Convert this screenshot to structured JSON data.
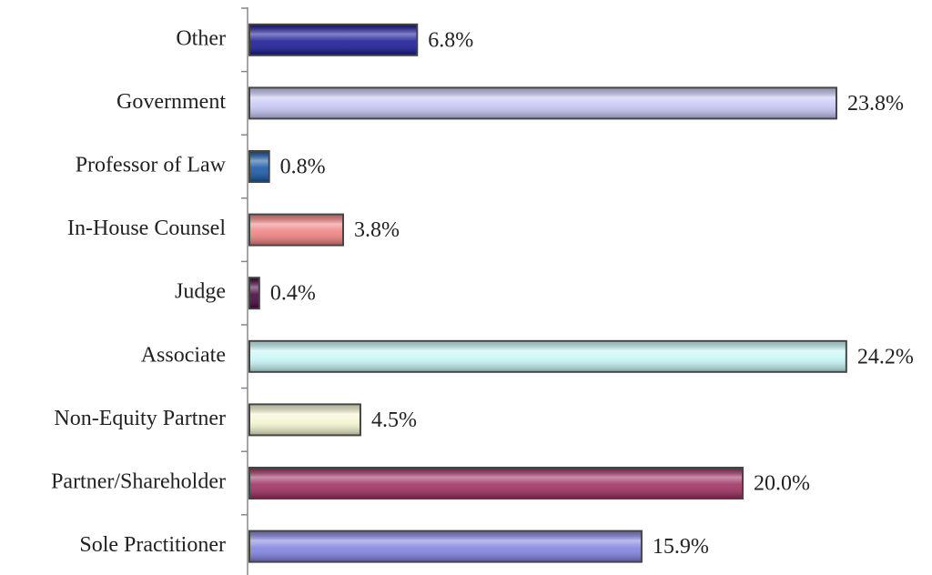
{
  "chart_data": {
    "type": "bar",
    "orientation": "horizontal",
    "categories": [
      "Other",
      "Government",
      "Professor of Law",
      "In-House Counsel",
      "Judge",
      "Associate",
      "Non-Equity Partner",
      "Partner/Shareholder",
      "Sole Practitioner"
    ],
    "values": [
      6.8,
      23.8,
      0.8,
      3.8,
      0.4,
      24.2,
      4.5,
      20.0,
      15.9
    ],
    "value_labels": [
      "6.8%",
      "23.8%",
      "0.8%",
      "3.8%",
      "0.4%",
      "24.2%",
      "4.5%",
      "20.0%",
      "15.9%"
    ],
    "colors": [
      "#1c1c98",
      "#c8c8f6",
      "#1a5aa8",
      "#f08484",
      "#4a0842",
      "#c8f6f6",
      "#f6f6d2",
      "#a03262",
      "#8484e2"
    ]
  }
}
